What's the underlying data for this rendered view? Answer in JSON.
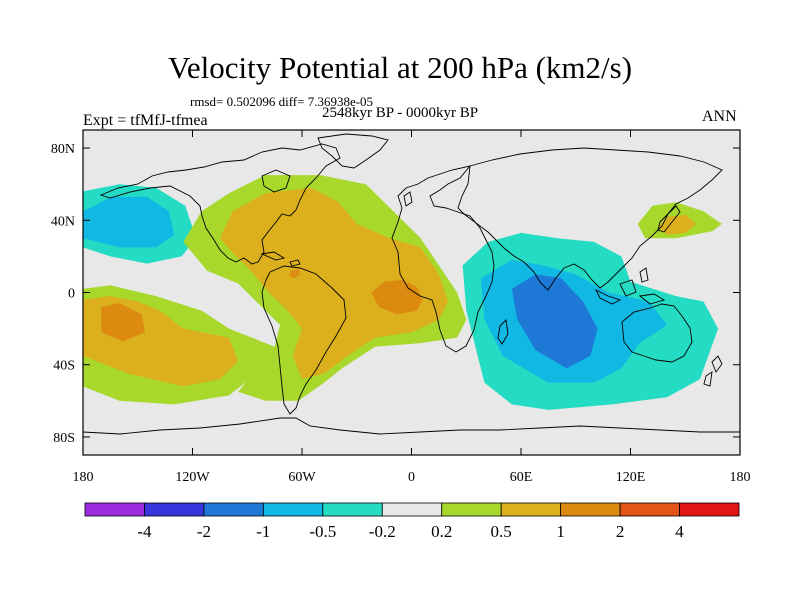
{
  "chart_data": {
    "type": "heatmap",
    "title": "Velocity Potential at 200 hPa (km2/s)",
    "stats_text": "rmsd= 0.502096 diff= 7.36938e-05",
    "subtitle": "2548kyr BP - 0000kyr BP",
    "left_label": "Expt = tfMfJ-tfmea",
    "right_label": "ANN",
    "projection": "cylindrical equidistant",
    "xlim": [
      -180,
      180
    ],
    "ylim": [
      -90,
      90
    ],
    "x_ticks": [
      {
        "value": -180,
        "label": "180"
      },
      {
        "value": -120,
        "label": "120W"
      },
      {
        "value": -60,
        "label": "60W"
      },
      {
        "value": 0,
        "label": "0"
      },
      {
        "value": 60,
        "label": "60E"
      },
      {
        "value": 120,
        "label": "120E"
      },
      {
        "value": 180,
        "label": "180"
      }
    ],
    "y_ticks": [
      {
        "value": 80,
        "label": "80N"
      },
      {
        "value": 40,
        "label": "40N"
      },
      {
        "value": 0,
        "label": "0"
      },
      {
        "value": -40,
        "label": "40S"
      },
      {
        "value": -80,
        "label": "80S"
      }
    ],
    "colorbar": {
      "colors": [
        "#9a2be0",
        "#3636dc",
        "#1e78d6",
        "#12b8e4",
        "#24dcc4",
        "#e8e8e8",
        "#a8d82c",
        "#dcb01c",
        "#dc8a10",
        "#e25418",
        "#e21414"
      ],
      "labels": [
        "-4",
        "-2",
        "-1",
        "-0.5",
        "-0.2",
        "0.2",
        "0.5",
        "1",
        "2",
        "4"
      ]
    },
    "regions": [
      {
        "name": "north-pacific-negative",
        "level": -0.5,
        "color": "#24dcc4",
        "lonlat": [
          [
            -180,
            56
          ],
          [
            -160,
            60
          ],
          [
            -140,
            58
          ],
          [
            -124,
            48
          ],
          [
            -118,
            30
          ],
          [
            -126,
            20
          ],
          [
            -145,
            16
          ],
          [
            -165,
            20
          ],
          [
            -180,
            25
          ]
        ]
      },
      {
        "name": "north-pacific-negative-core",
        "level": -1,
        "color": "#12b8e4",
        "lonlat": [
          [
            -180,
            45
          ],
          [
            -164,
            53
          ],
          [
            -145,
            53
          ],
          [
            -133,
            45
          ],
          [
            -130,
            32
          ],
          [
            -140,
            25
          ],
          [
            -160,
            25
          ],
          [
            -180,
            30
          ]
        ]
      },
      {
        "name": "atlantic-positive",
        "level": 0.5,
        "color": "#a8d82c",
        "lonlat": [
          [
            -125,
            28
          ],
          [
            -115,
            45
          ],
          [
            -100,
            55
          ],
          [
            -80,
            65
          ],
          [
            -50,
            65
          ],
          [
            -25,
            60
          ],
          [
            -10,
            45
          ],
          [
            5,
            30
          ],
          [
            15,
            15
          ],
          [
            25,
            0
          ],
          [
            30,
            -15
          ],
          [
            25,
            -25
          ],
          [
            5,
            -28
          ],
          [
            -20,
            -30
          ],
          [
            -38,
            -42
          ],
          [
            -48,
            -50
          ],
          [
            -62,
            -60
          ],
          [
            -80,
            -60
          ],
          [
            -95,
            -55
          ],
          [
            -75,
            -30
          ],
          [
            -72,
            -18
          ],
          [
            -85,
            -5
          ],
          [
            -95,
            5
          ],
          [
            -112,
            12
          ]
        ]
      },
      {
        "name": "atlantic-positive-core",
        "level": 1,
        "color": "#dcb01c",
        "lonlat": [
          [
            -105,
            30
          ],
          [
            -98,
            45
          ],
          [
            -80,
            55
          ],
          [
            -55,
            58
          ],
          [
            -40,
            50
          ],
          [
            -30,
            38
          ],
          [
            -12,
            30
          ],
          [
            5,
            25
          ],
          [
            15,
            10
          ],
          [
            20,
            -5
          ],
          [
            15,
            -15
          ],
          [
            0,
            -22
          ],
          [
            -20,
            -25
          ],
          [
            -35,
            -35
          ],
          [
            -48,
            -45
          ],
          [
            -60,
            -48
          ],
          [
            -65,
            -35
          ],
          [
            -60,
            -20
          ],
          [
            -68,
            -10
          ],
          [
            -78,
            0
          ],
          [
            -88,
            12
          ],
          [
            -98,
            22
          ]
        ]
      },
      {
        "name": "east-atlantic-strong",
        "level": 2,
        "color": "#dc8a10",
        "lonlat": [
          [
            -22,
            0
          ],
          [
            -15,
            6
          ],
          [
            -5,
            7
          ],
          [
            3,
            3
          ],
          [
            6,
            -4
          ],
          [
            3,
            -10
          ],
          [
            -8,
            -12
          ],
          [
            -18,
            -8
          ]
        ]
      },
      {
        "name": "caribbean-strong",
        "level": 2,
        "color": "#dc8a10",
        "lonlat": [
          [
            -66,
            12
          ],
          [
            -62,
            13
          ],
          [
            -61,
            10
          ],
          [
            -64,
            8
          ],
          [
            -67,
            9
          ]
        ]
      },
      {
        "name": "south-pacific-positive",
        "level": 0.5,
        "color": "#a8d82c",
        "lonlat": [
          [
            -180,
            2
          ],
          [
            -165,
            4
          ],
          [
            -140,
            -2
          ],
          [
            -115,
            -10
          ],
          [
            -100,
            -20
          ],
          [
            -75,
            -30
          ],
          [
            -85,
            -45
          ],
          [
            -100,
            -57
          ],
          [
            -130,
            -62
          ],
          [
            -160,
            -60
          ],
          [
            -180,
            -52
          ]
        ]
      },
      {
        "name": "south-pacific-positive-core",
        "level": 1,
        "color": "#dcb01c",
        "lonlat": [
          [
            -180,
            -4
          ],
          [
            -165,
            -2
          ],
          [
            -150,
            -5
          ],
          [
            -138,
            -10
          ],
          [
            -125,
            -20
          ],
          [
            -100,
            -25
          ],
          [
            -95,
            -38
          ],
          [
            -105,
            -48
          ],
          [
            -125,
            -52
          ],
          [
            -155,
            -45
          ],
          [
            -180,
            -35
          ]
        ]
      },
      {
        "name": "south-pacific-strong",
        "level": 2,
        "color": "#dc8a10",
        "lonlat": [
          [
            -170,
            -8
          ],
          [
            -160,
            -6
          ],
          [
            -148,
            -12
          ],
          [
            -146,
            -22
          ],
          [
            -158,
            -27
          ],
          [
            -170,
            -22
          ]
        ]
      },
      {
        "name": "indian-ocean-negative",
        "level": -0.2,
        "color": "#24dcc4",
        "lonlat": [
          [
            28,
            15
          ],
          [
            42,
            28
          ],
          [
            60,
            33
          ],
          [
            80,
            30
          ],
          [
            100,
            28
          ],
          [
            115,
            20
          ],
          [
            120,
            6
          ],
          [
            145,
            -2
          ],
          [
            160,
            -5
          ],
          [
            168,
            -20
          ],
          [
            158,
            -48
          ],
          [
            140,
            -58
          ],
          [
            110,
            -62
          ],
          [
            75,
            -65
          ],
          [
            55,
            -62
          ],
          [
            40,
            -50
          ],
          [
            35,
            -30
          ],
          [
            30,
            -10
          ]
        ]
      },
      {
        "name": "indian-ocean-negative-mid",
        "level": -0.5,
        "color": "#12b8e4",
        "lonlat": [
          [
            38,
            8
          ],
          [
            55,
            18
          ],
          [
            72,
            15
          ],
          [
            90,
            10
          ],
          [
            108,
            0
          ],
          [
            130,
            -5
          ],
          [
            140,
            -18
          ],
          [
            125,
            -28
          ],
          [
            115,
            -42
          ],
          [
            100,
            -50
          ],
          [
            75,
            -50
          ],
          [
            50,
            -35
          ],
          [
            40,
            -15
          ]
        ]
      },
      {
        "name": "indian-ocean-negative-core",
        "level": -1,
        "color": "#1e78d6",
        "lonlat": [
          [
            55,
            2
          ],
          [
            68,
            10
          ],
          [
            82,
            8
          ],
          [
            94,
            -5
          ],
          [
            102,
            -20
          ],
          [
            98,
            -35
          ],
          [
            85,
            -42
          ],
          [
            68,
            -32
          ],
          [
            58,
            -15
          ]
        ]
      },
      {
        "name": "north-pacific-east-positive",
        "level": 0.5,
        "color": "#a8d82c",
        "lonlat": [
          [
            124,
            38
          ],
          [
            132,
            48
          ],
          [
            145,
            50
          ],
          [
            160,
            45
          ],
          [
            170,
            38
          ],
          [
            165,
            34
          ],
          [
            145,
            30
          ],
          [
            128,
            30
          ]
        ]
      },
      {
        "name": "north-pacific-east-positive-core",
        "level": 1,
        "color": "#dcb01c",
        "lonlat": [
          [
            135,
            36
          ],
          [
            140,
            42
          ],
          [
            150,
            43
          ],
          [
            156,
            38
          ],
          [
            150,
            33
          ],
          [
            140,
            32
          ]
        ]
      }
    ]
  }
}
